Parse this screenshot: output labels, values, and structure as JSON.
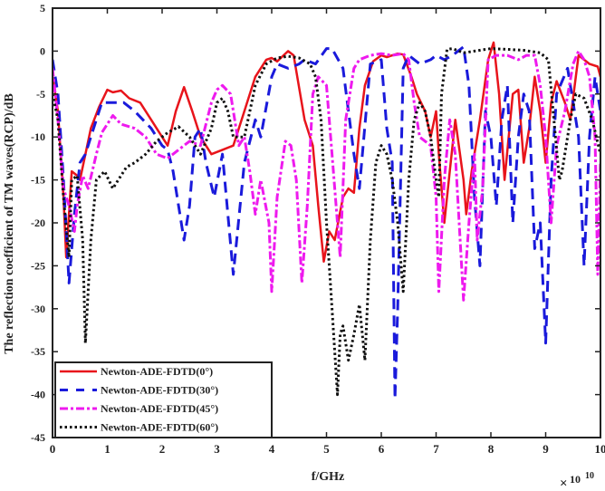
{
  "chart_data": {
    "type": "line",
    "title": "",
    "xlabel": "f/GHz",
    "ylabel": "The reflection coefficient of TM waves(RCP)/dB",
    "x_multiplier_base": "10",
    "x_multiplier_exp": "10",
    "xlim": [
      0,
      10
    ],
    "ylim": [
      -45,
      5
    ],
    "xticks": [
      0,
      1,
      2,
      3,
      4,
      5,
      6,
      7,
      8,
      9,
      10
    ],
    "yticks": [
      5,
      0,
      -5,
      -10,
      -15,
      -20,
      -25,
      -30,
      -35,
      -40,
      -45
    ],
    "grid": false,
    "legend_position": "bottom-left",
    "series": [
      {
        "name": "Newton-ADE-FDTD(0°)",
        "color": "#e8141b",
        "style": "solid",
        "x": [
          0,
          0.1,
          0.2,
          0.25,
          0.35,
          0.45,
          0.5,
          0.6,
          0.7,
          0.85,
          1.0,
          1.1,
          1.25,
          1.4,
          1.6,
          1.8,
          2.0,
          2.1,
          2.25,
          2.4,
          2.55,
          2.7,
          2.9,
          3.1,
          3.3,
          3.5,
          3.7,
          3.9,
          4.0,
          4.1,
          4.3,
          4.4,
          4.6,
          4.75,
          4.85,
          4.95,
          5.05,
          5.15,
          5.3,
          5.4,
          5.5,
          5.6,
          5.7,
          5.85,
          6.0,
          6.1,
          6.3,
          6.4,
          6.55,
          6.65,
          6.8,
          6.9,
          7.0,
          7.05,
          7.15,
          7.25,
          7.35,
          7.5,
          7.55,
          7.65,
          7.8,
          7.95,
          8.05,
          8.15,
          8.25,
          8.4,
          8.5,
          8.6,
          8.7,
          8.8,
          8.9,
          9.0,
          9.1,
          9.2,
          9.35,
          9.45,
          9.6,
          9.7,
          9.8,
          9.95,
          10
        ],
        "y": [
          -3,
          -7,
          -17,
          -24,
          -14,
          -14.5,
          -15,
          -12,
          -9,
          -6.5,
          -4.5,
          -4.8,
          -4.6,
          -5.5,
          -6,
          -8,
          -10,
          -11,
          -7,
          -4.2,
          -7,
          -10,
          -12,
          -11.5,
          -11,
          -7,
          -3,
          -1,
          -0.8,
          -1.2,
          0,
          -0.5,
          -8,
          -11,
          -18,
          -24.5,
          -21,
          -22,
          -17,
          -16,
          -16.5,
          -9,
          -4,
          -1.2,
          -0.5,
          -0.7,
          -0.3,
          -0.4,
          -3,
          -5,
          -7,
          -10,
          -7,
          -12,
          -20,
          -14,
          -8,
          -15,
          -19,
          -14,
          -8,
          -1,
          1,
          -5,
          -15,
          -5,
          -4.5,
          -13,
          -9,
          -3,
          -7,
          -13,
          -6,
          -3.5,
          -6,
          -8,
          -0.5,
          -1,
          -1.5,
          -1.8,
          -3
        ]
      },
      {
        "name": "Newton-ADE-FDTD(30°)",
        "color": "#1a1adb",
        "style": "dashed",
        "x": [
          0,
          0.1,
          0.2,
          0.3,
          0.4,
          0.5,
          0.6,
          0.7,
          0.8,
          0.9,
          1.1,
          1.3,
          1.5,
          1.8,
          2.0,
          2.1,
          2.2,
          2.4,
          2.5,
          2.6,
          2.7,
          2.8,
          2.95,
          3.1,
          3.3,
          3.5,
          3.7,
          3.8,
          4.0,
          4.1,
          4.3,
          4.5,
          4.6,
          4.8,
          5.0,
          5.1,
          5.3,
          5.5,
          5.6,
          5.8,
          6.0,
          6.1,
          6.2,
          6.25,
          6.3,
          6.4,
          6.5,
          6.7,
          6.9,
          7.0,
          7.15,
          7.3,
          7.4,
          7.5,
          7.6,
          7.7,
          7.8,
          7.9,
          8.0,
          8.1,
          8.2,
          8.3,
          8.4,
          8.5,
          8.6,
          8.7,
          8.8,
          8.9,
          9.0,
          9.1,
          9.2,
          9.4,
          9.5,
          9.6,
          9.7,
          9.8,
          9.9,
          10
        ],
        "y": [
          -1,
          -5,
          -15,
          -27,
          -19,
          -13,
          -12,
          -10,
          -8,
          -6,
          -6,
          -6,
          -7,
          -9,
          -11,
          -11.5,
          -14,
          -22,
          -18,
          -10,
          -9,
          -13,
          -17,
          -12,
          -26,
          -13,
          -8,
          -10,
          -3,
          -1.5,
          -2,
          -1.5,
          -1,
          -1.5,
          0.3,
          0.3,
          -2,
          -12,
          -16,
          -1.5,
          -1,
          -9,
          -13,
          -40.5,
          -30,
          -2,
          -0.5,
          -1.5,
          -1,
          -0.5,
          -1,
          -0.5,
          0,
          0.5,
          -4,
          -17,
          -25,
          -7,
          -10,
          -18,
          -8,
          -4,
          -20,
          -10,
          -5,
          -7,
          -23,
          -20,
          -34,
          -15,
          -5,
          -2,
          -6,
          -10,
          -25,
          -10,
          -3,
          -7
        ]
      },
      {
        "name": "Newton-ADE-FDTD(45°)",
        "color": "#ee1aee",
        "style": "dashdot",
        "x": [
          0,
          0.1,
          0.2,
          0.3,
          0.4,
          0.45,
          0.55,
          0.65,
          0.8,
          0.9,
          1.1,
          1.25,
          1.5,
          1.7,
          1.9,
          2.1,
          2.3,
          2.5,
          2.7,
          2.9,
          3.0,
          3.1,
          3.25,
          3.4,
          3.5,
          3.6,
          3.7,
          3.8,
          3.95,
          4.0,
          4.1,
          4.25,
          4.35,
          4.45,
          4.55,
          4.65,
          4.75,
          4.85,
          5.0,
          5.1,
          5.2,
          5.25,
          5.35,
          5.5,
          5.6,
          5.8,
          6.0,
          6.2,
          6.4,
          6.5,
          6.6,
          6.7,
          6.8,
          6.9,
          7.0,
          7.05,
          7.15,
          7.25,
          7.35,
          7.5,
          7.6,
          7.7,
          7.75,
          7.85,
          7.95,
          8.1,
          8.3,
          8.5,
          8.65,
          8.8,
          8.9,
          9.0,
          9.1,
          9.2,
          9.35,
          9.5,
          9.6,
          9.7,
          9.8,
          9.9,
          9.95,
          10
        ],
        "y": [
          -2,
          -8,
          -16,
          -18,
          -21,
          -18,
          -14.5,
          -16,
          -12,
          -9.5,
          -7.5,
          -8.5,
          -9,
          -10,
          -12,
          -12.5,
          -11.5,
          -10.5,
          -11,
          -6,
          -4.5,
          -4,
          -5,
          -11,
          -10,
          -14,
          -19,
          -15,
          -20,
          -28,
          -17,
          -10.5,
          -11,
          -15,
          -27,
          -18,
          -5,
          -3,
          -4,
          -12,
          -20,
          -24,
          -8,
          -2,
          -1,
          -0.5,
          -0.3,
          -0.5,
          -0.3,
          -1,
          -6,
          -10,
          -10.5,
          -11,
          -17,
          -28,
          -15,
          -8,
          -12,
          -29,
          -20,
          -12,
          -22,
          -16,
          -1,
          -0.5,
          -0.5,
          -1,
          -0.5,
          -0.5,
          -4,
          -10,
          -20,
          -11,
          -7,
          -1.5,
          0,
          -1,
          -3,
          -10,
          -26,
          -13
        ]
      },
      {
        "name": "Newton-ADE-FDTD(60°)",
        "color": "#111111",
        "style": "dotted",
        "x": [
          0,
          0.1,
          0.2,
          0.3,
          0.35,
          0.45,
          0.55,
          0.6,
          0.7,
          0.8,
          0.95,
          1.1,
          1.2,
          1.35,
          1.5,
          1.7,
          1.9,
          2.1,
          2.3,
          2.5,
          2.7,
          2.9,
          3.0,
          3.1,
          3.2,
          3.3,
          3.5,
          3.7,
          3.9,
          4.1,
          4.3,
          4.5,
          4.7,
          4.8,
          4.9,
          5.0,
          5.1,
          5.2,
          5.25,
          5.3,
          5.4,
          5.5,
          5.6,
          5.7,
          5.8,
          5.9,
          6.0,
          6.1,
          6.2,
          6.3,
          6.4,
          6.5,
          6.6,
          6.7,
          6.8,
          6.9,
          7.0,
          7.05,
          7.1,
          7.2,
          7.3,
          7.5,
          7.7,
          8.0,
          8.3,
          8.6,
          8.9,
          9.05,
          9.15,
          9.25,
          9.3,
          9.45,
          9.55,
          9.7,
          9.85,
          10
        ],
        "y": [
          -5,
          -8,
          -17,
          -24,
          -15,
          -14.5,
          -22,
          -34,
          -22,
          -15,
          -14,
          -16,
          -15,
          -13.5,
          -13,
          -12,
          -10.5,
          -9.5,
          -8.8,
          -10,
          -12,
          -9,
          -6,
          -5.5,
          -7,
          -10,
          -10,
          -4,
          -1.5,
          -0.8,
          -0.6,
          -0.8,
          -1.5,
          -3,
          -8,
          -20,
          -30,
          -40,
          -33,
          -32,
          -36,
          -33,
          -29.5,
          -36,
          -22,
          -13,
          -11,
          -12,
          -15,
          -20,
          -28,
          -15,
          -8,
          -6,
          -7,
          -10,
          -15,
          -17,
          -5,
          0.2,
          0.3,
          -0.2,
          0,
          0.3,
          0.2,
          0.1,
          -0.2,
          -1,
          -8,
          -15,
          -14,
          -8,
          -5,
          -5.5,
          -8,
          -12
        ]
      }
    ]
  }
}
